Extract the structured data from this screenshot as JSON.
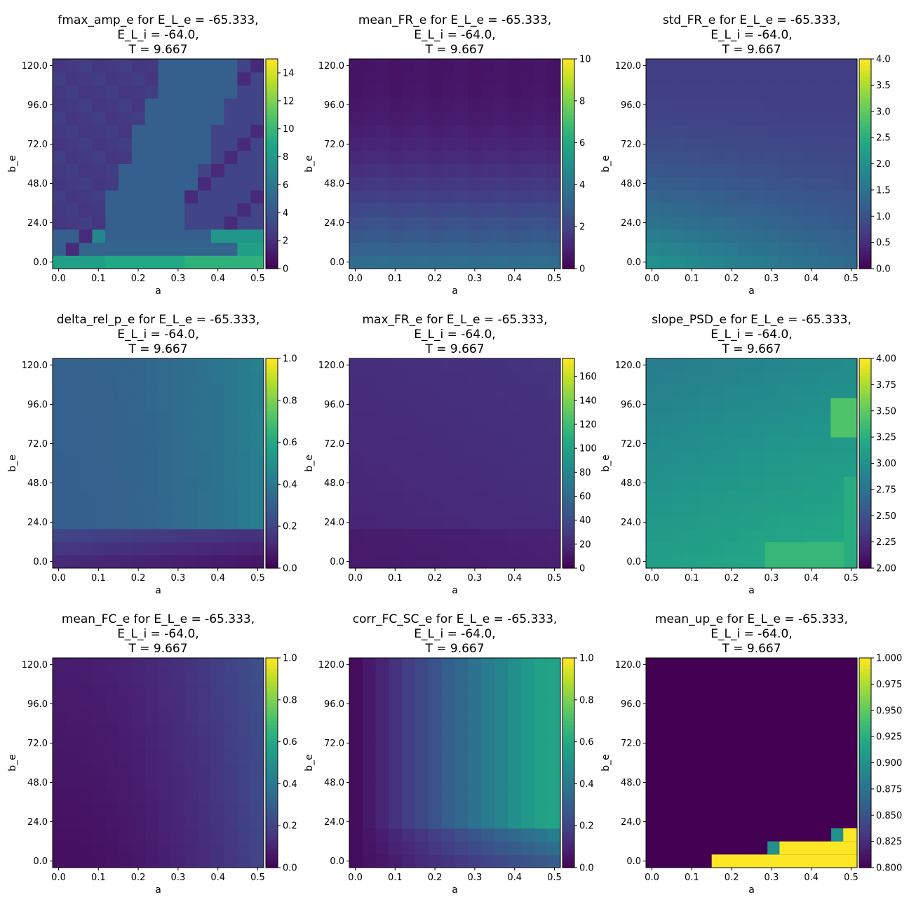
{
  "chart_data": [
    {
      "type": "heatmap",
      "title_lines": [
        "fmax_amp_e for E_L_e = -65.333,",
        "E_L_i = -64.0,",
        "T = 9.667"
      ],
      "xlabel": "a",
      "ylabel": "b_e",
      "xticks": [
        "0.0",
        "0.1",
        "0.2",
        "0.3",
        "0.4",
        "0.5"
      ],
      "yticks": [
        "0.0",
        "24.0",
        "48.0",
        "72.0",
        "96.0",
        "120.0"
      ],
      "x_range": [
        -0.015,
        0.515
      ],
      "y_range": [
        -4,
        124
      ],
      "cbar_range": [
        0,
        15
      ],
      "cbar_ticks": [
        "0",
        "2",
        "4",
        "6",
        "8",
        "10",
        "12",
        "14"
      ],
      "colormap": "viridis",
      "grid_shape": [
        16,
        16
      ],
      "layout": "fmax"
    },
    {
      "type": "heatmap",
      "title_lines": [
        "mean_FR_e for E_L_e = -65.333,",
        "E_L_i = -64.0,",
        "T = 9.667"
      ],
      "xlabel": "a",
      "ylabel": "b_e",
      "xticks": [
        "0.0",
        "0.1",
        "0.2",
        "0.3",
        "0.4",
        "0.5"
      ],
      "yticks": [
        "0.0",
        "24.0",
        "48.0",
        "72.0",
        "96.0",
        "120.0"
      ],
      "x_range": [
        -0.015,
        0.515
      ],
      "y_range": [
        -4,
        124
      ],
      "cbar_range": [
        0,
        10
      ],
      "cbar_ticks": [
        "0",
        "2",
        "4",
        "6",
        "8",
        "10"
      ],
      "colormap": "viridis",
      "grid_shape": [
        16,
        16
      ],
      "layout": "meanfr"
    },
    {
      "type": "heatmap",
      "title_lines": [
        "std_FR_e for E_L_e = -65.333,",
        "E_L_i = -64.0,",
        "T = 9.667"
      ],
      "xlabel": "a",
      "ylabel": "b_e",
      "xticks": [
        "0.0",
        "0.1",
        "0.2",
        "0.3",
        "0.4",
        "0.5"
      ],
      "yticks": [
        "0.0",
        "24.0",
        "48.0",
        "72.0",
        "96.0",
        "120.0"
      ],
      "x_range": [
        -0.015,
        0.515
      ],
      "y_range": [
        -4,
        124
      ],
      "cbar_range": [
        0,
        4
      ],
      "cbar_ticks": [
        "0.0",
        "0.5",
        "1.0",
        "1.5",
        "2.0",
        "2.5",
        "3.0",
        "3.5",
        "4.0"
      ],
      "colormap": "viridis",
      "grid_shape": [
        16,
        16
      ],
      "layout": "stdfr"
    },
    {
      "type": "heatmap",
      "title_lines": [
        "delta_rel_p_e for E_L_e = -65.333,",
        "E_L_i = -64.0,",
        "T = 9.667"
      ],
      "xlabel": "a",
      "ylabel": "b_e",
      "xticks": [
        "0.0",
        "0.1",
        "0.2",
        "0.3",
        "0.4",
        "0.5"
      ],
      "yticks": [
        "0.0",
        "24.0",
        "48.0",
        "72.0",
        "96.0",
        "120.0"
      ],
      "x_range": [
        -0.015,
        0.515
      ],
      "y_range": [
        -4,
        124
      ],
      "cbar_range": [
        0,
        1
      ],
      "cbar_ticks": [
        "0.0",
        "0.2",
        "0.4",
        "0.6",
        "0.8",
        "1.0"
      ],
      "colormap": "viridis",
      "grid_shape": [
        16,
        16
      ],
      "layout": "delta"
    },
    {
      "type": "heatmap",
      "title_lines": [
        "max_FR_e for E_L_e = -65.333,",
        "E_L_i = -64.0,",
        "T = 9.667"
      ],
      "xlabel": "a",
      "ylabel": "b_e",
      "xticks": [
        "0.0",
        "0.1",
        "0.2",
        "0.3",
        "0.4",
        "0.5"
      ],
      "yticks": [
        "0.0",
        "24.0",
        "48.0",
        "72.0",
        "96.0",
        "120.0"
      ],
      "x_range": [
        -0.015,
        0.515
      ],
      "y_range": [
        -4,
        124
      ],
      "cbar_range": [
        0,
        175
      ],
      "cbar_ticks": [
        "0",
        "20",
        "40",
        "60",
        "80",
        "100",
        "120",
        "140",
        "160"
      ],
      "colormap": "viridis",
      "grid_shape": [
        16,
        16
      ],
      "layout": "maxfr"
    },
    {
      "type": "heatmap",
      "title_lines": [
        "slope_PSD_e for E_L_e = -65.333,",
        "E_L_i = -64.0,",
        "T = 9.667"
      ],
      "xlabel": "a",
      "ylabel": "b_e",
      "xticks": [
        "0.0",
        "0.1",
        "0.2",
        "0.3",
        "0.4",
        "0.5"
      ],
      "yticks": [
        "0.0",
        "24.0",
        "48.0",
        "72.0",
        "96.0",
        "120.0"
      ],
      "x_range": [
        -0.015,
        0.515
      ],
      "y_range": [
        -4,
        124
      ],
      "cbar_range": [
        2,
        4
      ],
      "cbar_ticks": [
        "2.00",
        "2.25",
        "2.50",
        "2.75",
        "3.00",
        "3.25",
        "3.50",
        "3.75",
        "4.00"
      ],
      "colormap": "viridis",
      "grid_shape": [
        16,
        16
      ],
      "layout": "slope"
    },
    {
      "type": "heatmap",
      "title_lines": [
        "mean_FC_e for E_L_e = -65.333,",
        "E_L_i = -64.0,",
        "T = 9.667"
      ],
      "xlabel": "a",
      "ylabel": "b_e",
      "xticks": [
        "0.0",
        "0.1",
        "0.2",
        "0.3",
        "0.4",
        "0.5"
      ],
      "yticks": [
        "0.0",
        "24.0",
        "48.0",
        "72.0",
        "96.0",
        "120.0"
      ],
      "x_range": [
        -0.015,
        0.515
      ],
      "y_range": [
        -4,
        124
      ],
      "cbar_range": [
        0,
        1
      ],
      "cbar_ticks": [
        "0.0",
        "0.2",
        "0.4",
        "0.6",
        "0.8",
        "1.0"
      ],
      "colormap": "viridis",
      "grid_shape": [
        16,
        16
      ],
      "layout": "meanfc"
    },
    {
      "type": "heatmap",
      "title_lines": [
        "corr_FC_SC_e for E_L_e = -65.333,",
        "E_L_i = -64.0,",
        "T = 9.667"
      ],
      "xlabel": "a",
      "ylabel": "b_e",
      "xticks": [
        "0.0",
        "0.1",
        "0.2",
        "0.3",
        "0.4",
        "0.5"
      ],
      "yticks": [
        "0.0",
        "24.0",
        "48.0",
        "72.0",
        "96.0",
        "120.0"
      ],
      "x_range": [
        -0.015,
        0.515
      ],
      "y_range": [
        -4,
        124
      ],
      "cbar_range": [
        0,
        1
      ],
      "cbar_ticks": [
        "0.0",
        "0.2",
        "0.4",
        "0.6",
        "0.8",
        "1.0"
      ],
      "colormap": "viridis",
      "grid_shape": [
        16,
        16
      ],
      "layout": "corr"
    },
    {
      "type": "heatmap",
      "title_lines": [
        "mean_up_e for E_L_e = -65.333,",
        "E_L_i = -64.0,",
        "T = 9.667"
      ],
      "xlabel": "a",
      "ylabel": "b_e",
      "xticks": [
        "0.0",
        "0.1",
        "0.2",
        "0.3",
        "0.4",
        "0.5"
      ],
      "yticks": [
        "0.0",
        "24.0",
        "48.0",
        "72.0",
        "96.0",
        "120.0"
      ],
      "x_range": [
        -0.015,
        0.515
      ],
      "y_range": [
        -4,
        124
      ],
      "cbar_range": [
        0.8,
        1
      ],
      "cbar_ticks": [
        "0.800",
        "0.825",
        "0.850",
        "0.875",
        "0.900",
        "0.925",
        "0.950",
        "0.975",
        "1.000"
      ],
      "colormap": "viridis",
      "grid_shape": [
        16,
        16
      ],
      "layout": "meanup"
    }
  ]
}
